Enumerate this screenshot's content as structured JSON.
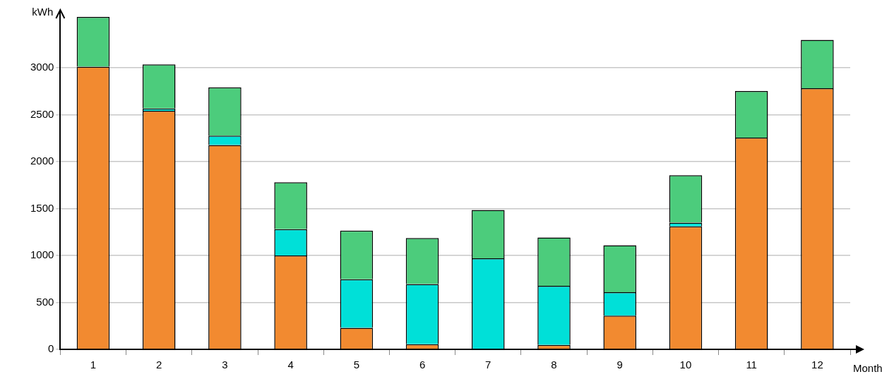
{
  "chart_data": {
    "type": "bar",
    "x_label": "Month",
    "y_label": "kWh",
    "categories": [
      "1",
      "2",
      "3",
      "4",
      "5",
      "6",
      "7",
      "8",
      "9",
      "10",
      "11",
      "12"
    ],
    "series": [
      {
        "color": "#f28a30",
        "values": [
          3010,
          2540,
          2175,
          1000,
          230,
          55,
          0,
          47,
          358,
          1310,
          2255,
          2780
        ]
      },
      {
        "color": "#00e0d8",
        "values": [
          0,
          25,
          100,
          280,
          515,
          640,
          970,
          630,
          250,
          40,
          0,
          0
        ]
      },
      {
        "color": "#4ccc7c",
        "values": [
          530,
          470,
          515,
          500,
          520,
          490,
          515,
          515,
          500,
          505,
          495,
          515
        ]
      }
    ],
    "stacked": true,
    "grid": true,
    "ylim": [
      0,
      3600
    ],
    "yticks": [
      0,
      500,
      1000,
      1500,
      2000,
      2500,
      3000
    ]
  }
}
